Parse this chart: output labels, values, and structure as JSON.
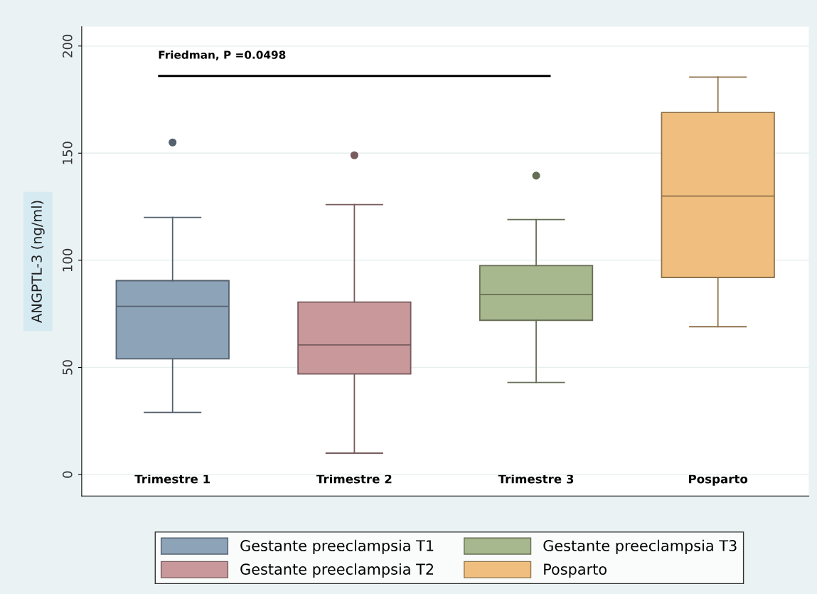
{
  "chart_data": {
    "type": "box",
    "ylabel": "ANGPTL-3 (ng/ml)",
    "categories": [
      "Trimestre 1",
      "Trimestre 2",
      "Trimestre 3",
      "Posparto"
    ],
    "series": [
      {
        "name": "Gestante preeclampsia T1",
        "color": "#8da3b8",
        "boxes": [
          {
            "low": 29,
            "q1": 54,
            "median": 78.5,
            "q3": 90.5,
            "high": 120,
            "outliers": [
              155
            ]
          },
          null,
          null,
          null
        ]
      },
      {
        "name": "Gestante preeclampsia T2",
        "color": "#c8989b",
        "boxes": [
          null,
          {
            "low": 10,
            "q1": 47,
            "median": 60.5,
            "q3": 80.5,
            "high": 126,
            "outliers": [
              149
            ]
          },
          null,
          null
        ]
      },
      {
        "name": "Gestante preeclampsia T3",
        "color": "#a8b88e",
        "boxes": [
          null,
          null,
          {
            "low": 43,
            "q1": 72,
            "median": 84,
            "q3": 97.5,
            "high": 119,
            "outliers": [
              139.5
            ]
          },
          null
        ]
      },
      {
        "name": "Posparto",
        "color": "#f0bf7f",
        "boxes": [
          null,
          null,
          null,
          {
            "low": 69,
            "q1": 92,
            "median": 130,
            "q3": 169,
            "high": 185.5
          }
        ]
      }
    ],
    "ylim": [
      -10,
      209
    ],
    "yticks": [
      0,
      50,
      100,
      150,
      200
    ],
    "grid": "y",
    "legend": "bottom",
    "annotations": [
      "Friedman, P =0.0498"
    ]
  }
}
